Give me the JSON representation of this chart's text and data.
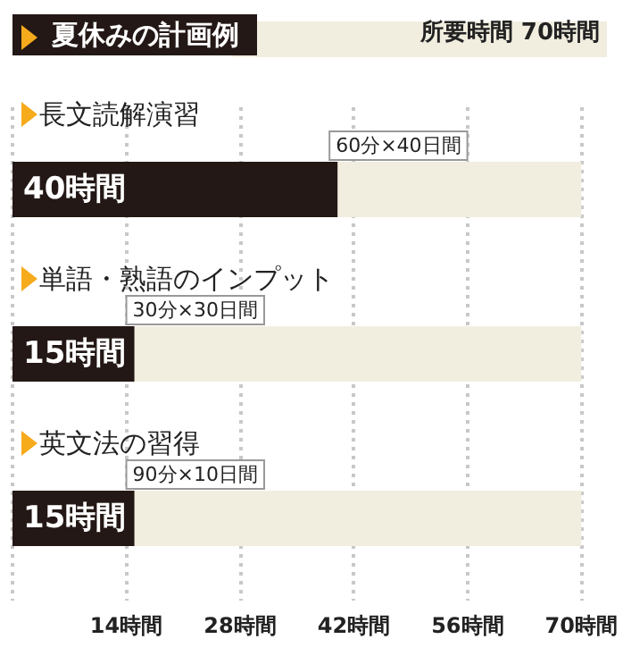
{
  "chart_data": {
    "type": "bar",
    "orientation": "horizontal",
    "title": "夏休みの計画例",
    "categories": [
      "長文読解演習",
      "単語・熟語のインプット",
      "英文法の習得"
    ],
    "values": [
      40,
      15,
      15
    ],
    "color": "#231815",
    "value_labels": [
      "40時間",
      "15時間",
      "15時間"
    ],
    "xlim": [
      0,
      70
    ],
    "xticks": [
      {
        "value": 0,
        "label": null
      },
      {
        "value": 14,
        "label": "14時間"
      },
      {
        "value": 28,
        "label": "28時間"
      },
      {
        "value": 42,
        "label": "42時間"
      },
      {
        "value": 56,
        "label": "56時間"
      },
      {
        "value": 70,
        "label": "70時間"
      }
    ],
    "grid": "x",
    "annotations": [
      "所要時間 70時間",
      "60分×40日間",
      "30分×30日間",
      "90分×10日間"
    ]
  }
}
